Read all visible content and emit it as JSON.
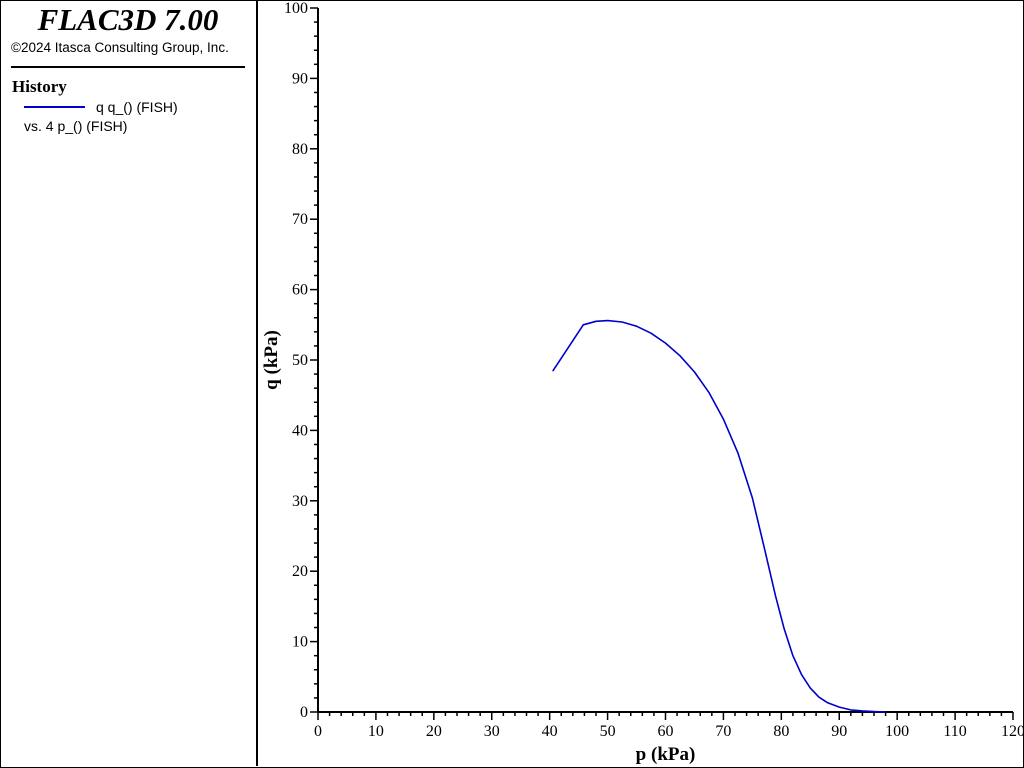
{
  "sidebar": {
    "app_title": "FLAC3D 7.00",
    "copyright": "©2024 Itasca Consulting Group, Inc.",
    "history_heading": "History",
    "legend_series": "q q_() (FISH)",
    "legend_vs": "vs. 4 p_() (FISH)"
  },
  "chart_data": {
    "type": "line",
    "xlabel": "p (kPa)",
    "ylabel": "q (kPa)",
    "xlim": [
      0,
      120
    ],
    "ylim": [
      0,
      100
    ],
    "xticks": [
      0,
      10,
      20,
      30,
      40,
      50,
      60,
      70,
      80,
      90,
      100,
      110,
      120
    ],
    "yticks": [
      0,
      10,
      20,
      30,
      40,
      50,
      60,
      70,
      80,
      90,
      100
    ],
    "grid": false,
    "series": [
      {
        "name": "q q_() (FISH)",
        "color": "#0000cc",
        "x": [
          40.6,
          45.8,
          48.0,
          50.0,
          52.5,
          55.0,
          57.5,
          60.0,
          62.5,
          65.0,
          67.5,
          70.0,
          72.5,
          75.0,
          77.0,
          79.0,
          80.5,
          82.0,
          83.5,
          85.0,
          86.5,
          88.0,
          90.0,
          92.0,
          94.0,
          96.0,
          98.0
        ],
        "y": [
          48.5,
          55.0,
          55.5,
          55.6,
          55.4,
          54.8,
          53.8,
          52.4,
          50.6,
          48.3,
          45.4,
          41.6,
          36.8,
          30.4,
          23.5,
          16.5,
          11.8,
          8.0,
          5.3,
          3.4,
          2.1,
          1.3,
          0.7,
          0.3,
          0.15,
          0.05,
          0.0
        ]
      }
    ]
  }
}
